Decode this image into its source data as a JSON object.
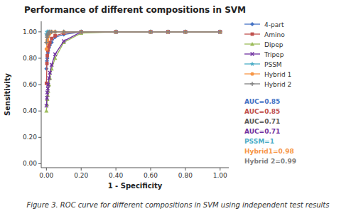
{
  "chart_data": {
    "type": "line",
    "title": "Performance of different compositions  in SVM",
    "xlabel": "1 - Specificity",
    "ylabel": "Sensitivity",
    "caption": "Figure 3. ROC curve for different compositions in SVM using independent test results",
    "xlim": [
      -0.03,
      1.05
    ],
    "ylim": [
      -0.03,
      1.08
    ],
    "xticks": [
      {
        "value": 0.0,
        "label": "0.00"
      },
      {
        "value": 0.2,
        "label": "0.20"
      },
      {
        "value": 0.4,
        "label": "0.40"
      },
      {
        "value": 0.6,
        "label": "0.60"
      },
      {
        "value": 0.8,
        "label": "0.80"
      },
      {
        "value": 1.0,
        "label": "1.00"
      }
    ],
    "yticks": [
      {
        "value": 0.0,
        "label": "0.00"
      },
      {
        "value": 0.2,
        "label": "0.20"
      },
      {
        "value": 0.4,
        "label": "0.40"
      },
      {
        "value": 0.6,
        "label": "0.60"
      },
      {
        "value": 0.8,
        "label": "0.80"
      },
      {
        "value": 1.0,
        "label": "1.00"
      }
    ],
    "grid": false,
    "legend": "right",
    "series": [
      {
        "name": "4-part",
        "color": "#4472C4",
        "marker": "diamond",
        "x": [
          0.0,
          0.003,
          0.005,
          0.008,
          0.01,
          0.015,
          0.02,
          0.03,
          0.05,
          0.1,
          0.2,
          0.4,
          0.6,
          0.7,
          0.8,
          1.0
        ],
        "values": [
          0.72,
          0.78,
          0.8,
          0.84,
          0.86,
          0.88,
          0.9,
          0.92,
          0.96,
          0.98,
          1.0,
          1.0,
          1.0,
          1.0,
          1.0,
          1.0
        ]
      },
      {
        "name": "Amino",
        "color": "#C0504D",
        "marker": "square",
        "x": [
          0.0,
          0.003,
          0.005,
          0.008,
          0.01,
          0.015,
          0.02,
          0.03,
          0.05,
          0.1,
          0.2,
          0.4,
          0.6,
          0.7,
          0.8,
          1.0
        ],
        "values": [
          0.61,
          0.76,
          0.82,
          0.86,
          0.88,
          0.9,
          0.92,
          0.95,
          0.97,
          0.99,
          1.0,
          1.0,
          1.0,
          1.0,
          1.0,
          1.0
        ]
      },
      {
        "name": "Dipep",
        "color": "#9BBB59",
        "marker": "triangle",
        "x": [
          0.0,
          0.003,
          0.005,
          0.008,
          0.01,
          0.015,
          0.02,
          0.03,
          0.05,
          0.1,
          0.2,
          0.4,
          0.6,
          0.7,
          0.8,
          1.0
        ],
        "values": [
          0.4,
          0.45,
          0.49,
          0.52,
          0.55,
          0.6,
          0.65,
          0.72,
          0.8,
          0.92,
          0.99,
          1.0,
          1.0,
          1.0,
          1.0,
          1.0
        ]
      },
      {
        "name": "Tripep",
        "color": "#7030A0",
        "marker": "x",
        "x": [
          0.0,
          0.003,
          0.005,
          0.008,
          0.01,
          0.015,
          0.02,
          0.03,
          0.05,
          0.1,
          0.2,
          0.4,
          0.6,
          0.7,
          0.8,
          1.0
        ],
        "values": [
          0.44,
          0.5,
          0.54,
          0.57,
          0.6,
          0.65,
          0.69,
          0.75,
          0.83,
          0.93,
          1.0,
          1.0,
          1.0,
          1.0,
          1.0,
          1.0
        ]
      },
      {
        "name": "PSSM",
        "color": "#4BACC6",
        "marker": "star",
        "x": [
          0.0,
          0.003,
          0.005,
          0.01,
          0.02,
          0.05,
          0.1,
          0.2,
          0.4,
          0.6,
          0.8,
          1.0
        ],
        "values": [
          0.98,
          1.0,
          1.0,
          1.0,
          1.0,
          1.0,
          1.0,
          1.0,
          1.0,
          1.0,
          1.0,
          1.0
        ]
      },
      {
        "name": "Hybrid 1",
        "color": "#F79646",
        "marker": "circle",
        "x": [
          0.0,
          0.003,
          0.005,
          0.008,
          0.01,
          0.015,
          0.02,
          0.03,
          0.05,
          0.1,
          0.2,
          0.4,
          0.6,
          0.7,
          0.8,
          1.0
        ],
        "values": [
          0.87,
          0.92,
          0.94,
          0.96,
          0.97,
          0.98,
          0.99,
          1.0,
          1.0,
          1.0,
          1.0,
          1.0,
          1.0,
          1.0,
          1.0,
          1.0
        ]
      },
      {
        "name": "Hybrid 2",
        "color": "#808080",
        "marker": "plus",
        "x": [
          0.0,
          0.003,
          0.005,
          0.008,
          0.01,
          0.015,
          0.02,
          0.03,
          0.05,
          0.1,
          0.2,
          0.4,
          0.6,
          0.7,
          0.8,
          1.0
        ],
        "values": [
          0.92,
          0.96,
          0.97,
          0.98,
          0.99,
          1.0,
          1.0,
          1.0,
          1.0,
          1.0,
          1.0,
          1.0,
          1.0,
          1.0,
          1.0,
          1.0
        ]
      }
    ],
    "annotations": [
      {
        "text": "AUC=0.85",
        "color": "#4472C4"
      },
      {
        "text": "AUC=0.85",
        "color": "#C0504D"
      },
      {
        "text": "AUC=0.71",
        "color": "#595959"
      },
      {
        "text": "AUC=0.71",
        "color": "#7030A0"
      },
      {
        "text": "PSSM=1",
        "color": "#4BACC6"
      },
      {
        "text": "Hybrid1=0.98",
        "color": "#F79646"
      },
      {
        "text": "Hybrid 2=0.99",
        "color": "#808080"
      }
    ]
  }
}
